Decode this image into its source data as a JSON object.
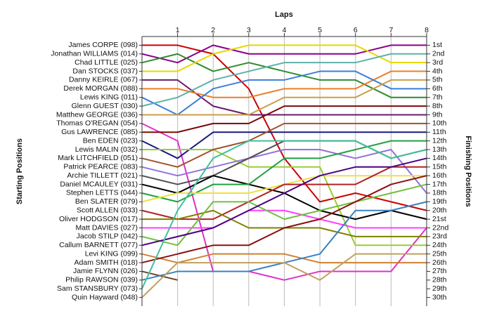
{
  "chart_data": {
    "type": "line",
    "title": "Laps",
    "y_label": "Starting Positions",
    "y2_label": "Finishing Positions",
    "x": [
      0,
      1,
      2,
      3,
      4,
      5,
      6,
      7,
      8
    ],
    "xlim": [
      0,
      8
    ],
    "xticks": [
      1,
      2,
      3,
      4,
      5,
      6,
      7,
      8
    ],
    "ylim": [
      31,
      0
    ],
    "yticks": [
      {
        "value": 1,
        "label": "James CORPE (098)"
      },
      {
        "value": 2,
        "label": "Jonathan WILLIAMS (014)"
      },
      {
        "value": 3,
        "label": "Chad LITTLE (025)"
      },
      {
        "value": 4,
        "label": "Dan STOCKS (037)"
      },
      {
        "value": 5,
        "label": "Danny KEIRLE (067)"
      },
      {
        "value": 6,
        "label": "Derek MORGAN (088)"
      },
      {
        "value": 7,
        "label": "Lewis KING (011)"
      },
      {
        "value": 8,
        "label": "Glenn GUEST (030)"
      },
      {
        "value": 9,
        "label": "Matthew GEORGE (036)"
      },
      {
        "value": 10,
        "label": "Thomas O'REGAN (054)"
      },
      {
        "value": 11,
        "label": "Gus LAWRENCE (085)"
      },
      {
        "value": 12,
        "label": "Ben EDEN (023)"
      },
      {
        "value": 13,
        "label": "Lewis MALIN (032)"
      },
      {
        "value": 14,
        "label": "Mark LITCHFIELD (051)"
      },
      {
        "value": 15,
        "label": "Patrick PEARCE (083)"
      },
      {
        "value": 16,
        "label": "Archie TILLETT (021)"
      },
      {
        "value": 17,
        "label": "Daniel MCAULEY (031)"
      },
      {
        "value": 18,
        "label": "Stephen LETTS (044)"
      },
      {
        "value": 19,
        "label": "Ben SLATER (079)"
      },
      {
        "value": 20,
        "label": "Scott ALLEN (033)"
      },
      {
        "value": 21,
        "label": "Oliver HODGSON (017)"
      },
      {
        "value": 22,
        "label": "Matt DAVIES (027)"
      },
      {
        "value": 23,
        "label": "Jacob STILP (042)"
      },
      {
        "value": 24,
        "label": "Callum BARNETT (077)"
      },
      {
        "value": 25,
        "label": "Levi KING (099)"
      },
      {
        "value": 26,
        "label": "Adam SMITH (018)"
      },
      {
        "value": 27,
        "label": "Jamie FLYNN (026)"
      },
      {
        "value": 28,
        "label": "Philip RAWSON (039)"
      },
      {
        "value": 29,
        "label": "Sam STANSBURY (073)"
      },
      {
        "value": 30,
        "label": "Quin Hayward (048)"
      }
    ],
    "y2lim": [
      31,
      0
    ],
    "y2ticks": [
      {
        "value": 1,
        "label": "1st"
      },
      {
        "value": 2,
        "label": "2nd"
      },
      {
        "value": 3,
        "label": "3rd"
      },
      {
        "value": 4,
        "label": "4th"
      },
      {
        "value": 5,
        "label": "5th"
      },
      {
        "value": 6,
        "label": "6th"
      },
      {
        "value": 7,
        "label": "7th"
      },
      {
        "value": 8,
        "label": "8th"
      },
      {
        "value": 9,
        "label": "9th"
      },
      {
        "value": 10,
        "label": "10th"
      },
      {
        "value": 11,
        "label": "11th"
      },
      {
        "value": 12,
        "label": "12th"
      },
      {
        "value": 13,
        "label": "13th"
      },
      {
        "value": 14,
        "label": "14th"
      },
      {
        "value": 15,
        "label": "15th"
      },
      {
        "value": 16,
        "label": "16th"
      },
      {
        "value": 17,
        "label": "17th"
      },
      {
        "value": 18,
        "label": "18th"
      },
      {
        "value": 19,
        "label": "19th"
      },
      {
        "value": 20,
        "label": "20th"
      },
      {
        "value": 21,
        "label": "21st"
      },
      {
        "value": 22,
        "label": "22nd"
      },
      {
        "value": 23,
        "label": "23rd"
      },
      {
        "value": 24,
        "label": "24th"
      },
      {
        "value": 25,
        "label": "25th"
      },
      {
        "value": 26,
        "label": "26th"
      },
      {
        "value": 27,
        "label": "27th"
      },
      {
        "value": 28,
        "label": "28th"
      },
      {
        "value": 29,
        "label": "29th"
      },
      {
        "value": 30,
        "label": "30th"
      }
    ],
    "grid": true,
    "series": [
      {
        "color": "#cc0000",
        "values": [
          1,
          1,
          2,
          6,
          14,
          19,
          18,
          19,
          20
        ]
      },
      {
        "color": "#8b008b",
        "values": [
          2,
          3,
          1,
          2,
          2,
          2,
          2,
          1,
          1
        ]
      },
      {
        "color": "#2e8b2e",
        "values": [
          3,
          2,
          4,
          3,
          4,
          5,
          5,
          7,
          7
        ]
      },
      {
        "color": "#e8d800",
        "values": [
          4,
          4,
          2,
          1,
          1,
          1,
          1,
          3,
          3
        ]
      },
      {
        "color": "#6a1b6a",
        "values": [
          5,
          5,
          8,
          9,
          9,
          9,
          9,
          9,
          9
        ]
      },
      {
        "color": "#e8802a",
        "values": [
          6,
          6,
          7,
          7,
          6,
          6,
          6,
          4,
          4
        ]
      },
      {
        "color": "#3b7fd6",
        "values": [
          7,
          9,
          6,
          5,
          5,
          4,
          4,
          6,
          6
        ]
      },
      {
        "color": "#5fb0a8",
        "values": [
          8,
          7,
          5,
          4,
          3,
          3,
          3,
          2,
          2
        ]
      },
      {
        "color": "#c8a048",
        "values": [
          9,
          9,
          9,
          9,
          7,
          7,
          7,
          5,
          5
        ]
      },
      {
        "color": "#e030c8",
        "values": [
          10,
          12,
          27,
          27,
          28,
          27,
          27,
          27,
          22
        ]
      },
      {
        "color": "#7a0a0a",
        "values": [
          11,
          11,
          10,
          10,
          8,
          8,
          8,
          8,
          8
        ]
      },
      {
        "color": "#1a1a80",
        "values": [
          12,
          14,
          11,
          11,
          11,
          11,
          11,
          11,
          11
        ]
      },
      {
        "color": "#9acd32",
        "values": [
          13,
          13,
          13,
          15,
          15,
          15,
          24,
          24,
          24
        ]
      },
      {
        "color": "#a0522d",
        "values": [
          14,
          15,
          13,
          12,
          10,
          10,
          10,
          10,
          10
        ]
      },
      {
        "color": "#9370db",
        "values": [
          15,
          16,
          15,
          14,
          13,
          13,
          14,
          13,
          18
        ]
      },
      {
        "color": "#505050",
        "values": [
          16,
          17,
          16,
          14,
          12,
          12,
          12,
          14,
          13
        ]
      },
      {
        "color": "#000000",
        "values": [
          17,
          18,
          16,
          17,
          18,
          20,
          21,
          20,
          21
        ]
      },
      {
        "color": "#20a040",
        "values": [
          18,
          19,
          17,
          17,
          14,
          14,
          13,
          12,
          12
        ]
      },
      {
        "color": "#f0e040",
        "values": [
          19,
          18,
          18,
          18,
          17,
          16,
          16,
          16,
          16
        ]
      },
      {
        "color": "#b22222",
        "values": [
          20,
          21,
          21,
          19,
          17,
          17,
          17,
          15,
          15
        ]
      },
      {
        "color": "#808000",
        "values": [
          21,
          21,
          20,
          22,
          22,
          22,
          23,
          23,
          23
        ]
      },
      {
        "color": "#ff40ff",
        "values": [
          22,
          22,
          22,
          20,
          20,
          21,
          22,
          22,
          22
        ]
      },
      {
        "color": "#70c040",
        "values": [
          23,
          24,
          19,
          19,
          21,
          20,
          19,
          18,
          17
        ]
      },
      {
        "color": "#4b0082",
        "values": [
          24,
          23,
          22,
          20,
          18,
          16,
          15,
          15,
          14
        ]
      },
      {
        "color": "#d08030",
        "values": [
          25,
          26,
          25,
          25,
          25,
          26,
          26,
          26,
          26
        ]
      },
      {
        "color": "#8b1010",
        "values": [
          26,
          25,
          24,
          24,
          22,
          21,
          19,
          17,
          16
        ]
      },
      {
        "color": "#6b4226",
        "values": [
          27,
          28,
          null,
          null,
          null,
          null,
          null,
          null,
          null
        ]
      },
      {
        "color": "#3a80c0",
        "values": [
          28,
          27,
          27,
          27,
          26,
          25,
          20,
          20,
          19
        ]
      },
      {
        "color": "#40c0a0",
        "values": [
          29,
          20,
          14,
          12,
          12,
          12,
          12,
          14,
          13
        ]
      },
      {
        "color": "#c0a060",
        "values": [
          30,
          26,
          26,
          26,
          26,
          28,
          25,
          25,
          25
        ]
      }
    ]
  }
}
